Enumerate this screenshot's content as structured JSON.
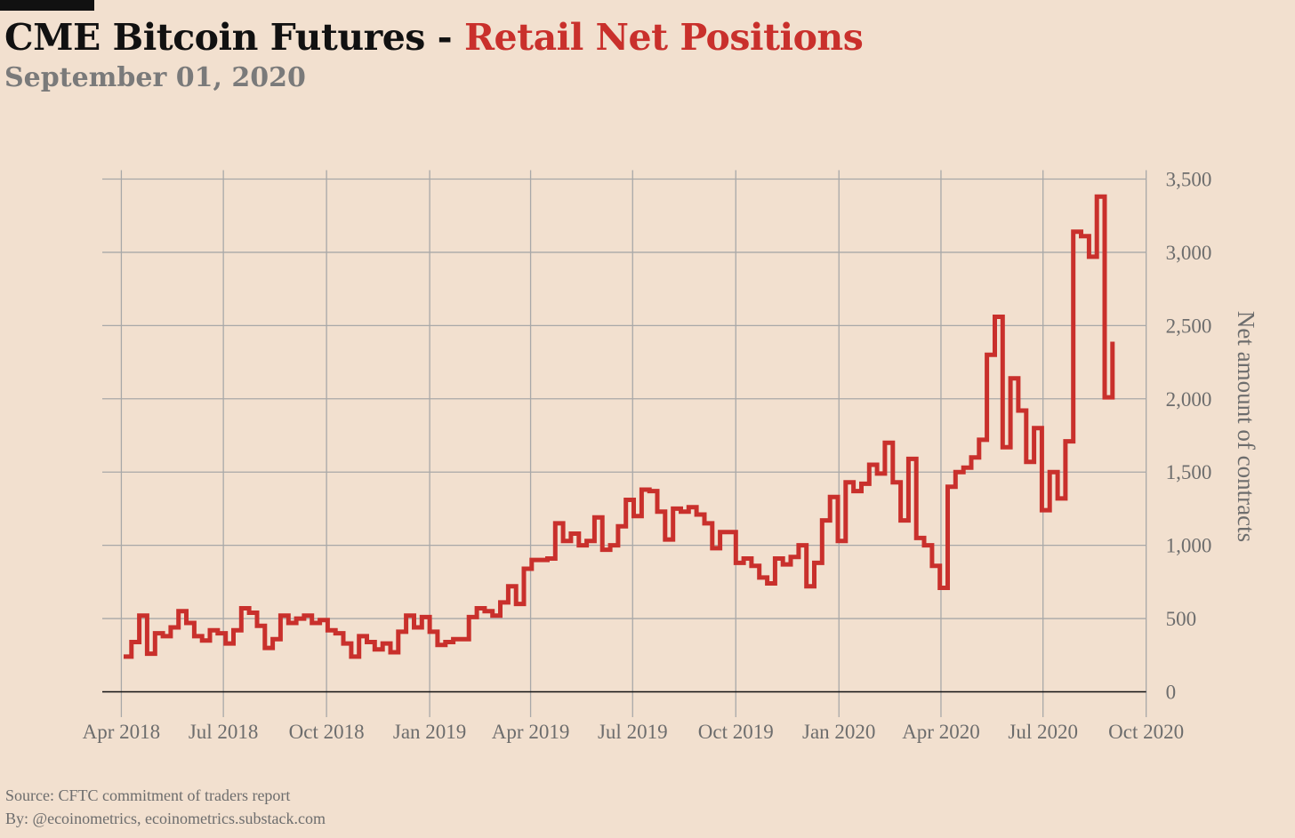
{
  "title": {
    "main": "CME Bitcoin Futures - ",
    "accent": "Retail Net Positions"
  },
  "subtitle": "September 01, 2020",
  "footer": {
    "source": "Source: CFTC commitment of traders report",
    "byline": "By: @ecoinometrics, ecoinometrics.substack.com"
  },
  "colors": {
    "background": "#f2e0cf",
    "series": "#c9302c",
    "grid": "#a8a8a8",
    "zero_line": "#111111",
    "muted_text": "#6d6d6d"
  },
  "chart_data": {
    "type": "line",
    "step": true,
    "ylabel": "Net amount of contracts",
    "y_axis_side": "right",
    "ylim": [
      -100,
      3600
    ],
    "xlim": [
      "2018-03-15",
      "2020-10-10"
    ],
    "yticks": [
      0,
      500,
      1000,
      1500,
      2000,
      2500,
      3000,
      3500
    ],
    "ytick_labels": [
      "0",
      "500",
      "1,000",
      "1,500",
      "2,000",
      "2,500",
      "3,000",
      "3,500"
    ],
    "xticks": [
      "2018-04-01",
      "2018-07-01",
      "2018-10-01",
      "2019-01-01",
      "2019-04-01",
      "2019-07-01",
      "2019-10-01",
      "2020-01-01",
      "2020-04-01",
      "2020-07-01",
      "2020-10-01"
    ],
    "xtick_labels": [
      "Apr 2018",
      "Jul 2018",
      "Oct 2018",
      "Jan 2019",
      "Apr 2019",
      "Jul 2019",
      "Oct 2019",
      "Jan 2020",
      "Apr 2020",
      "Jul 2020",
      "Oct 2020"
    ],
    "grid": true,
    "series": [
      {
        "values": [
          [
            "2018-04-03",
            240
          ],
          [
            "2018-04-10",
            340
          ],
          [
            "2018-04-17",
            520
          ],
          [
            "2018-04-24",
            260
          ],
          [
            "2018-05-01",
            400
          ],
          [
            "2018-05-08",
            380
          ],
          [
            "2018-05-15",
            440
          ],
          [
            "2018-05-22",
            550
          ],
          [
            "2018-05-29",
            470
          ],
          [
            "2018-06-05",
            380
          ],
          [
            "2018-06-12",
            350
          ],
          [
            "2018-06-19",
            420
          ],
          [
            "2018-06-26",
            400
          ],
          [
            "2018-07-03",
            330
          ],
          [
            "2018-07-10",
            420
          ],
          [
            "2018-07-17",
            570
          ],
          [
            "2018-07-24",
            540
          ],
          [
            "2018-07-31",
            450
          ],
          [
            "2018-08-07",
            300
          ],
          [
            "2018-08-14",
            360
          ],
          [
            "2018-08-21",
            520
          ],
          [
            "2018-08-28",
            470
          ],
          [
            "2018-09-04",
            500
          ],
          [
            "2018-09-11",
            520
          ],
          [
            "2018-09-18",
            470
          ],
          [
            "2018-09-25",
            490
          ],
          [
            "2018-10-02",
            420
          ],
          [
            "2018-10-09",
            400
          ],
          [
            "2018-10-16",
            330
          ],
          [
            "2018-10-23",
            240
          ],
          [
            "2018-10-30",
            380
          ],
          [
            "2018-11-06",
            340
          ],
          [
            "2018-11-13",
            290
          ],
          [
            "2018-11-20",
            330
          ],
          [
            "2018-11-27",
            270
          ],
          [
            "2018-12-04",
            410
          ],
          [
            "2018-12-11",
            520
          ],
          [
            "2018-12-18",
            440
          ],
          [
            "2018-12-25",
            510
          ],
          [
            "2019-01-01",
            410
          ],
          [
            "2019-01-08",
            320
          ],
          [
            "2019-01-15",
            340
          ],
          [
            "2019-01-22",
            360
          ],
          [
            "2019-01-29",
            360
          ],
          [
            "2019-02-05",
            510
          ],
          [
            "2019-02-12",
            570
          ],
          [
            "2019-02-19",
            550
          ],
          [
            "2019-02-26",
            520
          ],
          [
            "2019-03-05",
            610
          ],
          [
            "2019-03-12",
            720
          ],
          [
            "2019-03-19",
            600
          ],
          [
            "2019-03-26",
            840
          ],
          [
            "2019-04-02",
            900
          ],
          [
            "2019-04-09",
            900
          ],
          [
            "2019-04-16",
            910
          ],
          [
            "2019-04-23",
            1150
          ],
          [
            "2019-04-30",
            1030
          ],
          [
            "2019-05-07",
            1080
          ],
          [
            "2019-05-14",
            1000
          ],
          [
            "2019-05-21",
            1030
          ],
          [
            "2019-05-28",
            1190
          ],
          [
            "2019-06-04",
            970
          ],
          [
            "2019-06-11",
            1000
          ],
          [
            "2019-06-18",
            1130
          ],
          [
            "2019-06-25",
            1310
          ],
          [
            "2019-07-02",
            1200
          ],
          [
            "2019-07-09",
            1380
          ],
          [
            "2019-07-16",
            1370
          ],
          [
            "2019-07-23",
            1230
          ],
          [
            "2019-07-30",
            1040
          ],
          [
            "2019-08-06",
            1250
          ],
          [
            "2019-08-13",
            1230
          ],
          [
            "2019-08-20",
            1260
          ],
          [
            "2019-08-27",
            1210
          ],
          [
            "2019-09-03",
            1150
          ],
          [
            "2019-09-10",
            980
          ],
          [
            "2019-09-17",
            1090
          ],
          [
            "2019-09-24",
            1090
          ],
          [
            "2019-10-01",
            880
          ],
          [
            "2019-10-08",
            910
          ],
          [
            "2019-10-15",
            860
          ],
          [
            "2019-10-22",
            780
          ],
          [
            "2019-10-29",
            740
          ],
          [
            "2019-11-05",
            910
          ],
          [
            "2019-11-12",
            870
          ],
          [
            "2019-11-19",
            920
          ],
          [
            "2019-11-26",
            1000
          ],
          [
            "2019-12-03",
            720
          ],
          [
            "2019-12-10",
            880
          ],
          [
            "2019-12-17",
            1170
          ],
          [
            "2019-12-24",
            1330
          ],
          [
            "2019-12-31",
            1030
          ],
          [
            "2020-01-07",
            1430
          ],
          [
            "2020-01-14",
            1370
          ],
          [
            "2020-01-21",
            1420
          ],
          [
            "2020-01-28",
            1550
          ],
          [
            "2020-02-04",
            1490
          ],
          [
            "2020-02-11",
            1700
          ],
          [
            "2020-02-18",
            1430
          ],
          [
            "2020-02-25",
            1170
          ],
          [
            "2020-03-03",
            1590
          ],
          [
            "2020-03-10",
            1050
          ],
          [
            "2020-03-17",
            1000
          ],
          [
            "2020-03-24",
            860
          ],
          [
            "2020-03-31",
            710
          ],
          [
            "2020-04-07",
            1400
          ],
          [
            "2020-04-14",
            1500
          ],
          [
            "2020-04-21",
            1530
          ],
          [
            "2020-04-28",
            1600
          ],
          [
            "2020-05-05",
            1720
          ],
          [
            "2020-05-12",
            2300
          ],
          [
            "2020-05-19",
            2560
          ],
          [
            "2020-05-26",
            1670
          ],
          [
            "2020-06-02",
            2140
          ],
          [
            "2020-06-09",
            1920
          ],
          [
            "2020-06-16",
            1570
          ],
          [
            "2020-06-23",
            1800
          ],
          [
            "2020-06-30",
            1240
          ],
          [
            "2020-07-07",
            1500
          ],
          [
            "2020-07-14",
            1320
          ],
          [
            "2020-07-21",
            1710
          ],
          [
            "2020-07-28",
            3140
          ],
          [
            "2020-08-04",
            3110
          ],
          [
            "2020-08-11",
            2970
          ],
          [
            "2020-08-18",
            3380
          ],
          [
            "2020-08-25",
            2010
          ],
          [
            "2020-09-01",
            2390
          ]
        ]
      }
    ]
  }
}
